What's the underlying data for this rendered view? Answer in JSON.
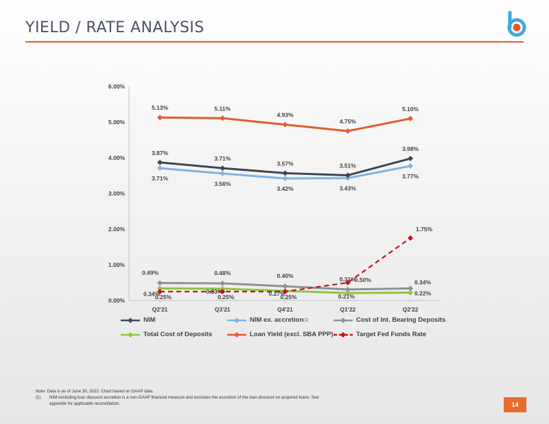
{
  "header": {
    "title": "YIELD / RATE ANALYSIS"
  },
  "logo": {
    "icon": "b-logo-icon",
    "colors": {
      "primary": "#3fa9dd",
      "accent": "#e8542a"
    }
  },
  "chart_data": {
    "type": "line",
    "categories": [
      "Q2'21",
      "Q3'21",
      "Q4'21",
      "Q1'22",
      "Q2'22"
    ],
    "ylim": [
      0,
      6
    ],
    "yticks": [
      "0.00%",
      "1.00%",
      "2.00%",
      "3.00%",
      "4.00%",
      "5.00%",
      "6.00%"
    ],
    "grid": false,
    "legend_position": "bottom",
    "series": [
      {
        "name": "NIM",
        "values": [
          3.87,
          3.71,
          3.57,
          3.51,
          3.98
        ],
        "labels": [
          "3.87%",
          "3.71%",
          "3.57%",
          "3.51%",
          "3.98%"
        ],
        "color": "#3b4755",
        "marker": "diamond",
        "dash": false,
        "label_pos": "above"
      },
      {
        "name": "NIM ex. accretion",
        "superscript": "(1)",
        "values": [
          3.71,
          3.56,
          3.42,
          3.43,
          3.77
        ],
        "labels": [
          "3.71%",
          "3.56%",
          "3.42%",
          "3.43%",
          "3.77%"
        ],
        "color": "#7fb2e0",
        "marker": "diamond",
        "dash": false,
        "label_pos": "below"
      },
      {
        "name": "Cost of Int. Bearing Deposits",
        "values": [
          0.49,
          0.48,
          0.4,
          0.31,
          0.34
        ],
        "labels": [
          "0.49%",
          "0.48%",
          "0.40%",
          "0.31%",
          "0.34%"
        ],
        "color": "#8c9298",
        "marker": "diamond",
        "dash": false,
        "label_pos": "cost-int"
      },
      {
        "name": "Total Cost of Deposits",
        "values": [
          0.34,
          0.33,
          0.27,
          0.21,
          0.22
        ],
        "labels": [
          "0.34%",
          "0.33%",
          "0.27%",
          "0.21%",
          "0.22%"
        ],
        "color": "#8cc63f",
        "marker": "diamond",
        "dash": false,
        "label_pos": "total-cost"
      },
      {
        "name": "Loan Yield (excl. SBA PPP)",
        "values": [
          5.13,
          5.11,
          4.93,
          4.75,
          5.1
        ],
        "labels": [
          "5.13%",
          "5.11%",
          "4.93%",
          "4.75%",
          "5.10%"
        ],
        "color": "#e35b2a",
        "marker": "diamond",
        "dash": false,
        "label_pos": "above"
      },
      {
        "name": "Target Fed Funds Rate",
        "values": [
          0.25,
          0.25,
          0.25,
          0.5,
          1.75
        ],
        "labels": [
          "0.25%",
          "0.25%",
          "0.25%",
          "0.50%",
          "1.75%"
        ],
        "color": "#c8101a",
        "marker": "diamond",
        "dash": true,
        "label_pos": "fed"
      }
    ]
  },
  "footnote": {
    "note": "Note: Data is as of June 30, 2022. Chart based on GAAP data.",
    "mark": "(1)",
    "text": "NIM excluding loan discount accretion is a non-GAAP financial measure and excludes the accretion of the loan discount on acquired loans. See appendix for applicable reconciliation."
  },
  "page": {
    "number": "14",
    "color": "#e86b2c"
  }
}
